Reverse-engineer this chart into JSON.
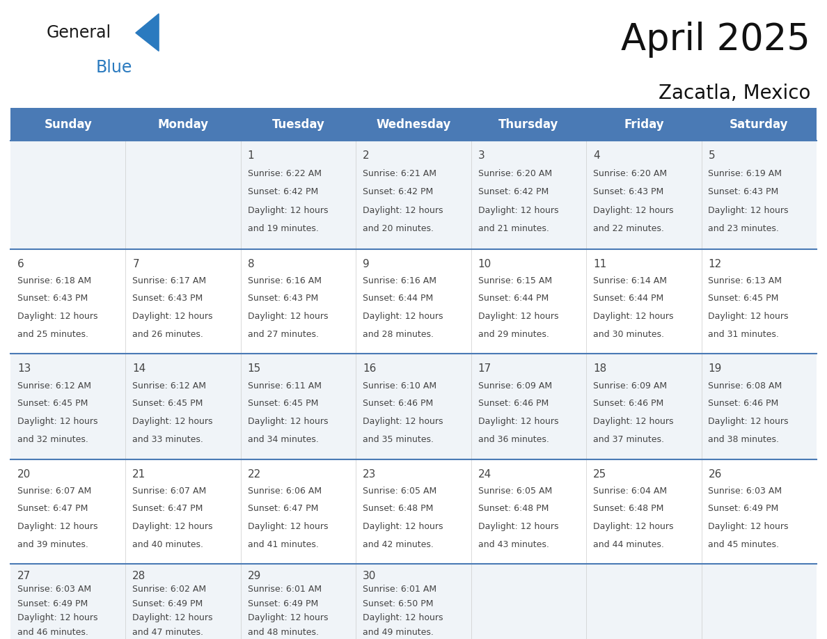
{
  "title": "April 2025",
  "subtitle": "Zacatla, Mexico",
  "header_bg": "#4a7ab5",
  "header_text_color": "#FFFFFF",
  "day_names": [
    "Sunday",
    "Monday",
    "Tuesday",
    "Wednesday",
    "Thursday",
    "Friday",
    "Saturday"
  ],
  "title_font_size": 38,
  "subtitle_font_size": 20,
  "cell_text_color": "#444444",
  "cell_num_font_size": 11,
  "cell_info_font_size": 9,
  "row_bgs": [
    "#f0f4f8",
    "#ffffff",
    "#f0f4f8",
    "#ffffff",
    "#f0f4f8"
  ],
  "header_font_size": 12,
  "days": [
    {
      "day": 1,
      "col": 2,
      "row": 0,
      "sunrise": "6:22 AM",
      "sunset": "6:42 PM",
      "daylight_hours": 12,
      "daylight_minutes": 19
    },
    {
      "day": 2,
      "col": 3,
      "row": 0,
      "sunrise": "6:21 AM",
      "sunset": "6:42 PM",
      "daylight_hours": 12,
      "daylight_minutes": 20
    },
    {
      "day": 3,
      "col": 4,
      "row": 0,
      "sunrise": "6:20 AM",
      "sunset": "6:42 PM",
      "daylight_hours": 12,
      "daylight_minutes": 21
    },
    {
      "day": 4,
      "col": 5,
      "row": 0,
      "sunrise": "6:20 AM",
      "sunset": "6:43 PM",
      "daylight_hours": 12,
      "daylight_minutes": 22
    },
    {
      "day": 5,
      "col": 6,
      "row": 0,
      "sunrise": "6:19 AM",
      "sunset": "6:43 PM",
      "daylight_hours": 12,
      "daylight_minutes": 23
    },
    {
      "day": 6,
      "col": 0,
      "row": 1,
      "sunrise": "6:18 AM",
      "sunset": "6:43 PM",
      "daylight_hours": 12,
      "daylight_minutes": 25
    },
    {
      "day": 7,
      "col": 1,
      "row": 1,
      "sunrise": "6:17 AM",
      "sunset": "6:43 PM",
      "daylight_hours": 12,
      "daylight_minutes": 26
    },
    {
      "day": 8,
      "col": 2,
      "row": 1,
      "sunrise": "6:16 AM",
      "sunset": "6:43 PM",
      "daylight_hours": 12,
      "daylight_minutes": 27
    },
    {
      "day": 9,
      "col": 3,
      "row": 1,
      "sunrise": "6:16 AM",
      "sunset": "6:44 PM",
      "daylight_hours": 12,
      "daylight_minutes": 28
    },
    {
      "day": 10,
      "col": 4,
      "row": 1,
      "sunrise": "6:15 AM",
      "sunset": "6:44 PM",
      "daylight_hours": 12,
      "daylight_minutes": 29
    },
    {
      "day": 11,
      "col": 5,
      "row": 1,
      "sunrise": "6:14 AM",
      "sunset": "6:44 PM",
      "daylight_hours": 12,
      "daylight_minutes": 30
    },
    {
      "day": 12,
      "col": 6,
      "row": 1,
      "sunrise": "6:13 AM",
      "sunset": "6:45 PM",
      "daylight_hours": 12,
      "daylight_minutes": 31
    },
    {
      "day": 13,
      "col": 0,
      "row": 2,
      "sunrise": "6:12 AM",
      "sunset": "6:45 PM",
      "daylight_hours": 12,
      "daylight_minutes": 32
    },
    {
      "day": 14,
      "col": 1,
      "row": 2,
      "sunrise": "6:12 AM",
      "sunset": "6:45 PM",
      "daylight_hours": 12,
      "daylight_minutes": 33
    },
    {
      "day": 15,
      "col": 2,
      "row": 2,
      "sunrise": "6:11 AM",
      "sunset": "6:45 PM",
      "daylight_hours": 12,
      "daylight_minutes": 34
    },
    {
      "day": 16,
      "col": 3,
      "row": 2,
      "sunrise": "6:10 AM",
      "sunset": "6:46 PM",
      "daylight_hours": 12,
      "daylight_minutes": 35
    },
    {
      "day": 17,
      "col": 4,
      "row": 2,
      "sunrise": "6:09 AM",
      "sunset": "6:46 PM",
      "daylight_hours": 12,
      "daylight_minutes": 36
    },
    {
      "day": 18,
      "col": 5,
      "row": 2,
      "sunrise": "6:09 AM",
      "sunset": "6:46 PM",
      "daylight_hours": 12,
      "daylight_minutes": 37
    },
    {
      "day": 19,
      "col": 6,
      "row": 2,
      "sunrise": "6:08 AM",
      "sunset": "6:46 PM",
      "daylight_hours": 12,
      "daylight_minutes": 38
    },
    {
      "day": 20,
      "col": 0,
      "row": 3,
      "sunrise": "6:07 AM",
      "sunset": "6:47 PM",
      "daylight_hours": 12,
      "daylight_minutes": 39
    },
    {
      "day": 21,
      "col": 1,
      "row": 3,
      "sunrise": "6:07 AM",
      "sunset": "6:47 PM",
      "daylight_hours": 12,
      "daylight_minutes": 40
    },
    {
      "day": 22,
      "col": 2,
      "row": 3,
      "sunrise": "6:06 AM",
      "sunset": "6:47 PM",
      "daylight_hours": 12,
      "daylight_minutes": 41
    },
    {
      "day": 23,
      "col": 3,
      "row": 3,
      "sunrise": "6:05 AM",
      "sunset": "6:48 PM",
      "daylight_hours": 12,
      "daylight_minutes": 42
    },
    {
      "day": 24,
      "col": 4,
      "row": 3,
      "sunrise": "6:05 AM",
      "sunset": "6:48 PM",
      "daylight_hours": 12,
      "daylight_minutes": 43
    },
    {
      "day": 25,
      "col": 5,
      "row": 3,
      "sunrise": "6:04 AM",
      "sunset": "6:48 PM",
      "daylight_hours": 12,
      "daylight_minutes": 44
    },
    {
      "day": 26,
      "col": 6,
      "row": 3,
      "sunrise": "6:03 AM",
      "sunset": "6:49 PM",
      "daylight_hours": 12,
      "daylight_minutes": 45
    },
    {
      "day": 27,
      "col": 0,
      "row": 4,
      "sunrise": "6:03 AM",
      "sunset": "6:49 PM",
      "daylight_hours": 12,
      "daylight_minutes": 46
    },
    {
      "day": 28,
      "col": 1,
      "row": 4,
      "sunrise": "6:02 AM",
      "sunset": "6:49 PM",
      "daylight_hours": 12,
      "daylight_minutes": 47
    },
    {
      "day": 29,
      "col": 2,
      "row": 4,
      "sunrise": "6:01 AM",
      "sunset": "6:49 PM",
      "daylight_hours": 12,
      "daylight_minutes": 48
    },
    {
      "day": 30,
      "col": 3,
      "row": 4,
      "sunrise": "6:01 AM",
      "sunset": "6:50 PM",
      "daylight_hours": 12,
      "daylight_minutes": 49
    }
  ],
  "logo_general_color": "#1a1a1a",
  "logo_blue_color": "#2a7abf",
  "border_color": "#4a7ab5",
  "divider_color": "#4a7ab5"
}
